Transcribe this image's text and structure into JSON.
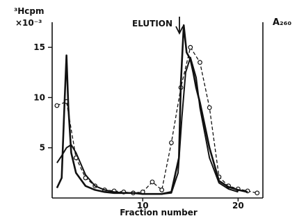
{
  "chart_data": {
    "type": "line",
    "ylabel_left": "³Hcpm",
    "ylabel_left_unit": "×10⁻³",
    "ylabel_right": "A₂₆₀",
    "xlabel": "Fraction number",
    "annotation": "ELUTION",
    "xlim": [
      0.5,
      22.6
    ],
    "ylim": [
      0,
      17.5
    ],
    "x_ticks": [
      10,
      20
    ],
    "y_ticks": [
      5,
      10,
      15
    ],
    "grid": false,
    "series": [
      {
        "style": "dashed-circle-markers",
        "x": [
          1,
          2,
          3,
          4,
          5,
          6,
          7,
          8,
          9,
          10,
          11,
          12,
          13,
          14,
          15,
          16,
          17,
          18,
          19,
          20,
          21,
          22
        ],
        "y": [
          9.2,
          9.6,
          4.0,
          2.0,
          1.2,
          0.8,
          0.7,
          0.6,
          0.5,
          0.6,
          1.6,
          0.8,
          5.5,
          11.0,
          15.0,
          13.5,
          9.0,
          2.1,
          1.2,
          0.9,
          0.7,
          0.5
        ]
      },
      {
        "style": "solid-jagged",
        "x": [
          1,
          1.5,
          1.8,
          2.0,
          2.2,
          2.5,
          3,
          4,
          5,
          6,
          7,
          8,
          9,
          10,
          11,
          12,
          13,
          13.8,
          14.0,
          14.3,
          14.6,
          15.0,
          15.3,
          15.6,
          16,
          17,
          18,
          19,
          20,
          21
        ],
        "y": [
          1.0,
          2.0,
          9.5,
          14.2,
          9.0,
          4.5,
          2.5,
          1.2,
          0.8,
          0.6,
          0.5,
          0.5,
          0.5,
          0.4,
          0.4,
          0.4,
          0.6,
          4.0,
          11.5,
          17.2,
          14.5,
          13.8,
          12.5,
          11.0,
          9.5,
          5.0,
          1.7,
          1.1,
          0.8,
          0.6
        ]
      },
      {
        "style": "solid-smooth",
        "x": [
          1,
          1.5,
          2,
          2.5,
          3,
          4,
          5,
          6,
          7,
          8,
          9,
          10,
          11,
          12,
          13,
          13.7,
          14.1,
          14.5,
          15,
          15.6,
          16,
          17,
          18,
          19,
          20
        ],
        "y": [
          3.5,
          4.2,
          5.0,
          5.3,
          4.5,
          2.3,
          1.2,
          0.8,
          0.6,
          0.5,
          0.5,
          0.4,
          0.4,
          0.4,
          0.5,
          2.5,
          8.0,
          12.5,
          14.0,
          12.0,
          9.0,
          4.0,
          1.5,
          0.9,
          0.6
        ]
      }
    ]
  }
}
